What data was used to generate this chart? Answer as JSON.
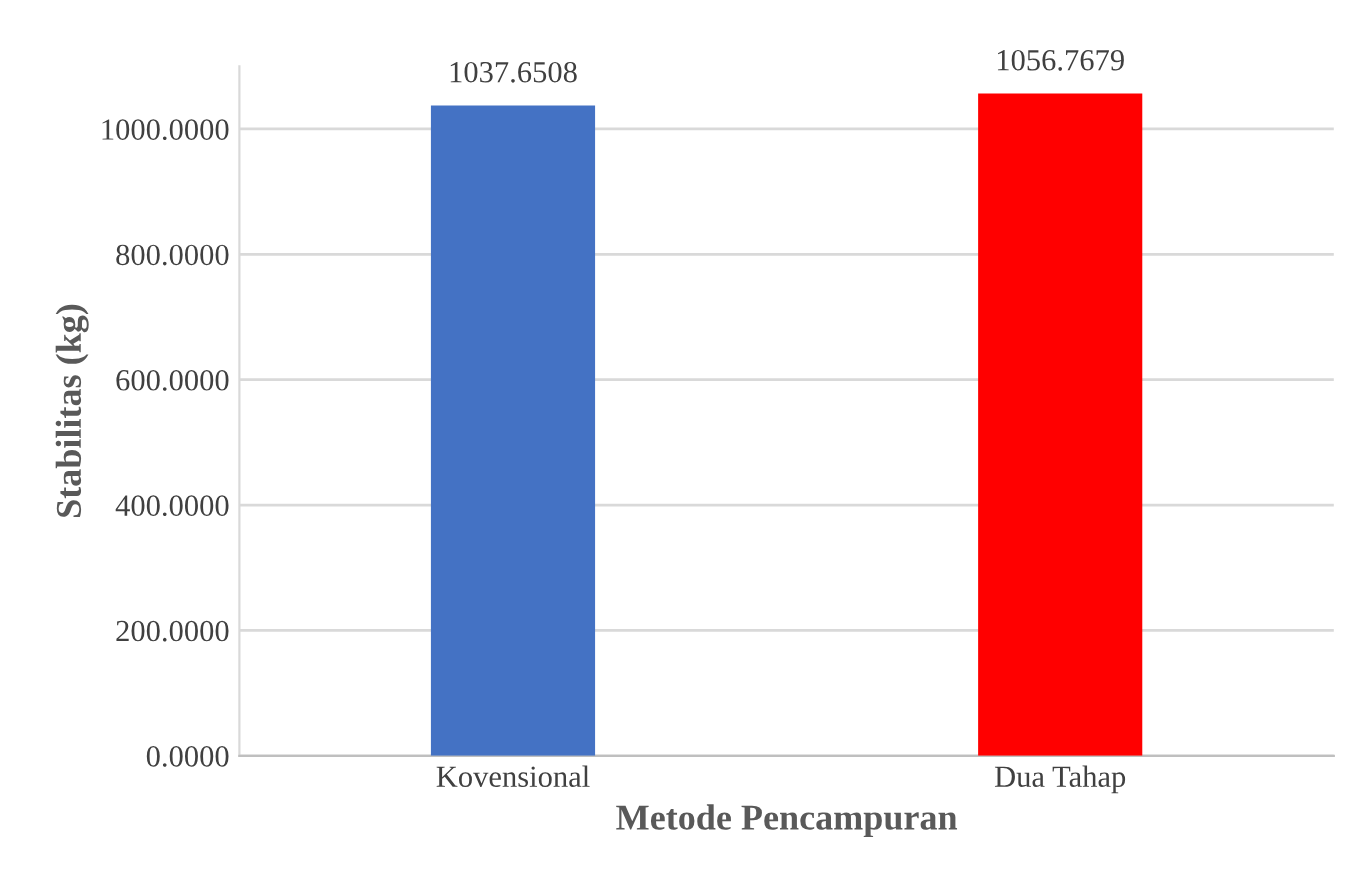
{
  "chart_data": {
    "type": "bar",
    "xlabel": "Metode Pencampuran",
    "ylabel": "Stabilitas (kg)",
    "categories": [
      "Kovensional",
      "Dua Tahap"
    ],
    "values": [
      1037.6508,
      1056.7679
    ],
    "colors": [
      "#4472c4",
      "#ff0000"
    ],
    "value_labels": [
      "1037.6508",
      "1056.7679"
    ],
    "ylim": [
      0,
      1100
    ],
    "yticks": [
      {
        "value": 0,
        "label": "0.0000"
      },
      {
        "value": 200,
        "label": "200.0000"
      },
      {
        "value": 400,
        "label": "400.0000"
      },
      {
        "value": 600,
        "label": "600.0000"
      },
      {
        "value": 800,
        "label": "800.0000"
      },
      {
        "value": 1000,
        "label": "1000.0000"
      }
    ],
    "grid": "y",
    "legend": false
  }
}
